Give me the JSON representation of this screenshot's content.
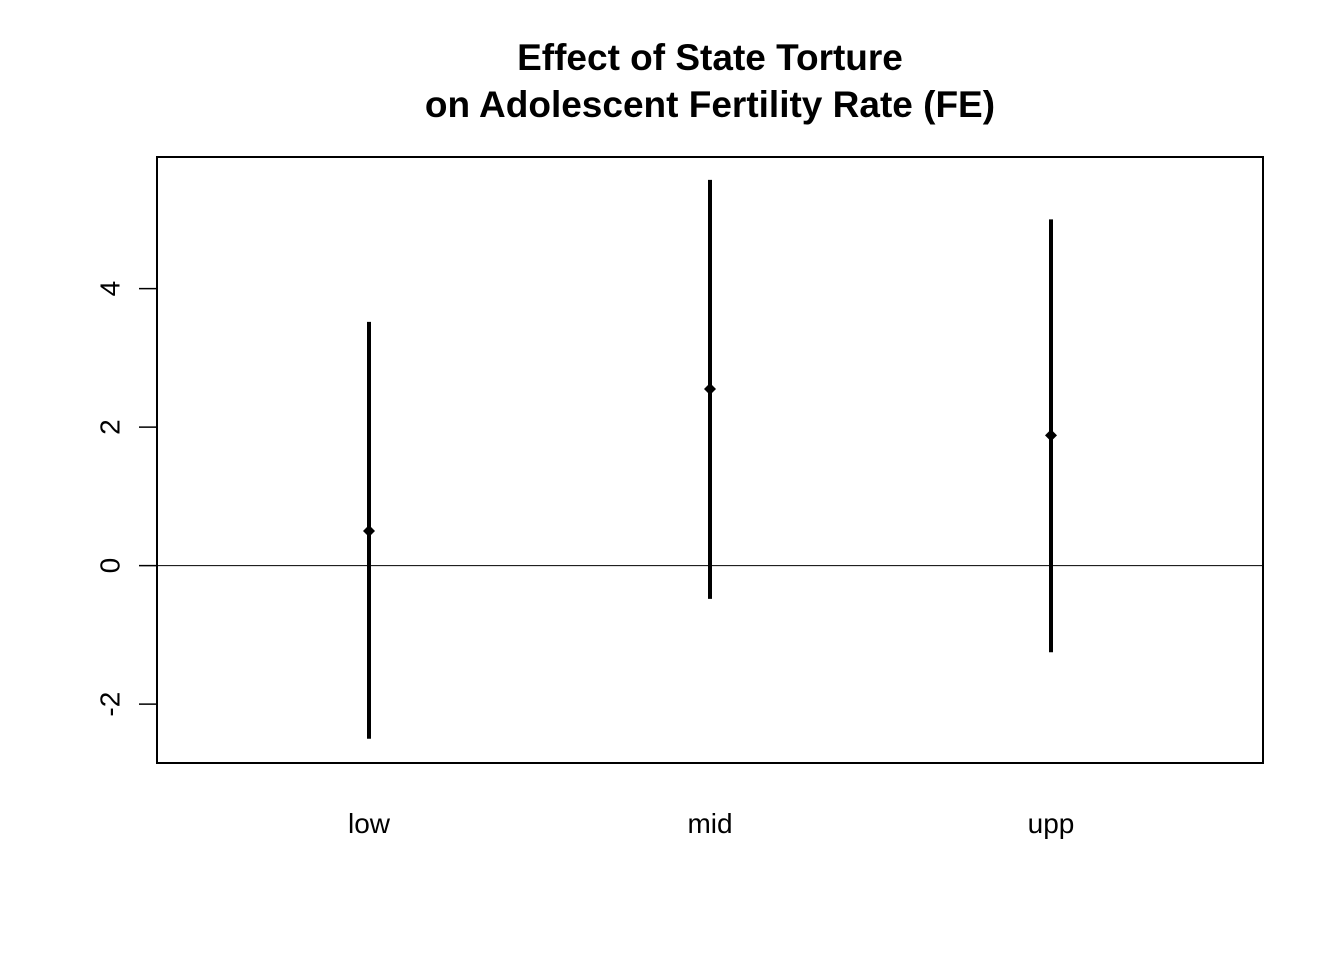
{
  "chart_data": {
    "type": "scatter",
    "title_lines": [
      "Effect of State Torture",
      "on Adolescent Fertility Rate (FE)"
    ],
    "xlabel": "",
    "ylabel": "",
    "categories": [
      "low",
      "mid",
      "upp"
    ],
    "estimates": [
      0.5,
      2.55,
      1.88
    ],
    "lower": [
      -2.5,
      -0.48,
      -1.25
    ],
    "upper": [
      3.52,
      5.57,
      5.0
    ],
    "ylim": [
      -2.85,
      5.9
    ],
    "yticks": [
      -2,
      0,
      2,
      4
    ],
    "yticklabels": [
      "-2",
      "0",
      "2",
      "4"
    ],
    "reference_line": 0,
    "colors": {
      "marks": "#000000",
      "axis": "#000000"
    }
  }
}
